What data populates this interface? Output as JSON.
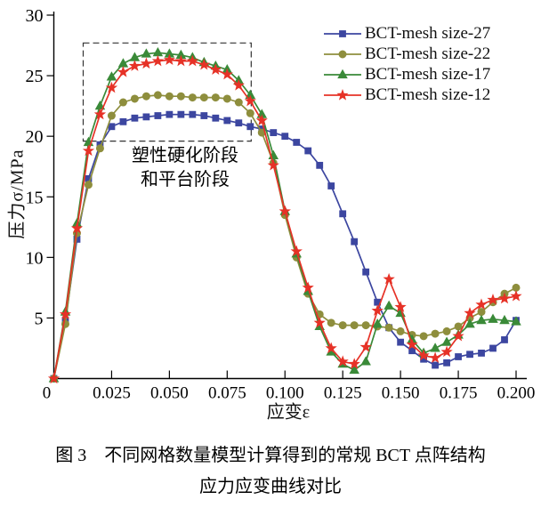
{
  "caption": {
    "line1": "图 3　不同网格数量模型计算得到的常规 BCT 点阵结构",
    "line2": "应力应变曲线对比"
  },
  "chart_data": {
    "type": "line",
    "title": "",
    "xlabel": "应变ε",
    "ylabel": "压力σ/MPa",
    "xlim": [
      0,
      0.2
    ],
    "ylim": [
      0,
      30
    ],
    "grid": false,
    "legend_position": "top-right",
    "xticks": [
      0,
      0.025,
      0.05,
      0.075,
      0.1,
      0.125,
      0.15,
      0.175,
      0.2
    ],
    "xtick_labels": [
      "0",
      "0.025",
      "0.050",
      "0.075",
      "0.100",
      "0.125",
      "0.150",
      "0.175",
      "0.200"
    ],
    "yticks": [
      5,
      10,
      15,
      20,
      25,
      30
    ],
    "ytick_labels": [
      "5",
      "10",
      "15",
      "20",
      "25",
      "30"
    ],
    "annotation": {
      "line1": "塑性硬化阶段",
      "line2": "和平台阶段"
    },
    "dashed_box": {
      "x0": 0.0127,
      "x1": 0.0854,
      "y0": 19.6,
      "y1": 27.7
    },
    "x": [
      0,
      0.005,
      0.01,
      0.015,
      0.02,
      0.025,
      0.03,
      0.035,
      0.04,
      0.045,
      0.05,
      0.055,
      0.06,
      0.065,
      0.07,
      0.075,
      0.08,
      0.085,
      0.09,
      0.095,
      0.1,
      0.105,
      0.11,
      0.115,
      0.12,
      0.125,
      0.13,
      0.135,
      0.14,
      0.145,
      0.15,
      0.155,
      0.16,
      0.165,
      0.17,
      0.175,
      0.18,
      0.185,
      0.19,
      0.195,
      0.2
    ],
    "series": [
      {
        "name": "BCT-mesh size-27",
        "color": "#3c46a0",
        "marker": "square",
        "values": [
          0,
          4.8,
          11.5,
          16.5,
          19.3,
          20.8,
          21.2,
          21.5,
          21.6,
          21.7,
          21.8,
          21.8,
          21.8,
          21.7,
          21.5,
          21.3,
          21.1,
          20.8,
          20.6,
          20.3,
          20.0,
          19.5,
          18.8,
          17.6,
          15.9,
          13.6,
          11.3,
          8.8,
          6.3,
          4.2,
          3.0,
          2.3,
          1.6,
          1.1,
          1.3,
          1.8,
          2.0,
          2.1,
          2.5,
          3.2,
          4.8
        ]
      },
      {
        "name": "BCT-mesh size-22",
        "color": "#8e8e3d",
        "marker": "circle",
        "values": [
          0,
          4.5,
          12.0,
          16.0,
          19.0,
          21.7,
          22.8,
          23.1,
          23.3,
          23.4,
          23.3,
          23.3,
          23.2,
          23.2,
          23.2,
          23.1,
          22.8,
          21.9,
          20.3,
          17.8,
          13.5,
          10.0,
          7.0,
          5.3,
          4.6,
          4.4,
          4.4,
          4.4,
          4.3,
          4.2,
          3.9,
          3.6,
          3.5,
          3.7,
          3.9,
          4.3,
          5.0,
          5.5,
          6.3,
          7.0,
          7.5
        ]
      },
      {
        "name": "BCT-mesh size-17",
        "color": "#3a8a38",
        "marker": "triangle",
        "values": [
          0,
          5.5,
          12.8,
          19.5,
          22.5,
          24.9,
          26.0,
          26.5,
          26.8,
          26.9,
          26.8,
          26.7,
          26.5,
          26.1,
          25.8,
          25.5,
          24.6,
          23.4,
          21.8,
          18.4,
          13.8,
          10.3,
          7.2,
          4.3,
          2.2,
          1.2,
          0.7,
          1.4,
          4.5,
          6.0,
          5.4,
          3.2,
          2.1,
          2.5,
          3.0,
          3.6,
          4.5,
          4.8,
          4.9,
          4.8,
          4.7
        ]
      },
      {
        "name": "BCT-mesh size-12",
        "color": "#e63227",
        "marker": "star",
        "values": [
          0,
          5.3,
          12.4,
          18.8,
          21.8,
          24.0,
          25.3,
          25.8,
          26.0,
          26.2,
          26.3,
          26.2,
          26.2,
          25.9,
          25.5,
          25.1,
          24.2,
          22.9,
          21.3,
          17.6,
          13.8,
          10.5,
          7.5,
          4.6,
          2.5,
          1.4,
          1.2,
          2.6,
          5.6,
          8.2,
          5.9,
          2.8,
          1.9,
          1.7,
          2.2,
          3.5,
          5.4,
          6.1,
          6.5,
          6.6,
          6.8
        ]
      }
    ]
  }
}
